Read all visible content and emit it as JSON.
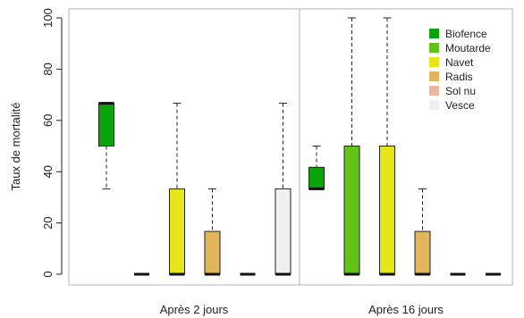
{
  "chart_data": {
    "type": "boxplot",
    "ylabel": "Taux de mortalité",
    "xlabel": "",
    "ylim": [
      0,
      100
    ],
    "yticks": [
      0,
      20,
      40,
      60,
      80,
      100
    ],
    "grid": false,
    "legend_position": "top-right",
    "groups": [
      "Après 2 jours",
      "Après 16 jours"
    ],
    "series": [
      {
        "name": "Biofence",
        "color": "#0aa30a",
        "boxes": [
          {
            "min": 33.3,
            "q1": 50,
            "median": 66.7,
            "q3": 66.7,
            "max": 66.7
          },
          {
            "min": 33.3,
            "q1": 33.3,
            "median": 33.3,
            "q3": 41.7,
            "max": 50
          }
        ]
      },
      {
        "name": "Moutarde",
        "color": "#63c21a",
        "boxes": [
          {
            "min": 0,
            "q1": 0,
            "median": 0,
            "q3": 0,
            "max": 0
          },
          {
            "min": 0,
            "q1": 0,
            "median": 0,
            "q3": 50,
            "max": 100
          }
        ]
      },
      {
        "name": "Navet",
        "color": "#e5e51a",
        "boxes": [
          {
            "min": 0,
            "q1": 0,
            "median": 0,
            "q3": 33.3,
            "max": 66.7
          },
          {
            "min": 0,
            "q1": 0,
            "median": 0,
            "q3": 50,
            "max": 100
          }
        ]
      },
      {
        "name": "Radis",
        "color": "#e3b55c",
        "boxes": [
          {
            "min": 0,
            "q1": 0,
            "median": 0,
            "q3": 16.7,
            "max": 33.3
          },
          {
            "min": 0,
            "q1": 0,
            "median": 0,
            "q3": 16.7,
            "max": 33.3
          }
        ]
      },
      {
        "name": "Sol nu",
        "color": "#e9b79f",
        "boxes": [
          {
            "min": 0,
            "q1": 0,
            "median": 0,
            "q3": 0,
            "max": 0
          },
          {
            "min": 0,
            "q1": 0,
            "median": 0,
            "q3": 0,
            "max": 0
          }
        ]
      },
      {
        "name": "Vesce",
        "color": "#f0f0f0",
        "boxes": [
          {
            "min": 0,
            "q1": 0,
            "median": 0,
            "q3": 33.3,
            "max": 66.7
          },
          {
            "min": 0,
            "q1": 0,
            "median": 0,
            "q3": 0,
            "max": 0
          }
        ]
      }
    ]
  }
}
